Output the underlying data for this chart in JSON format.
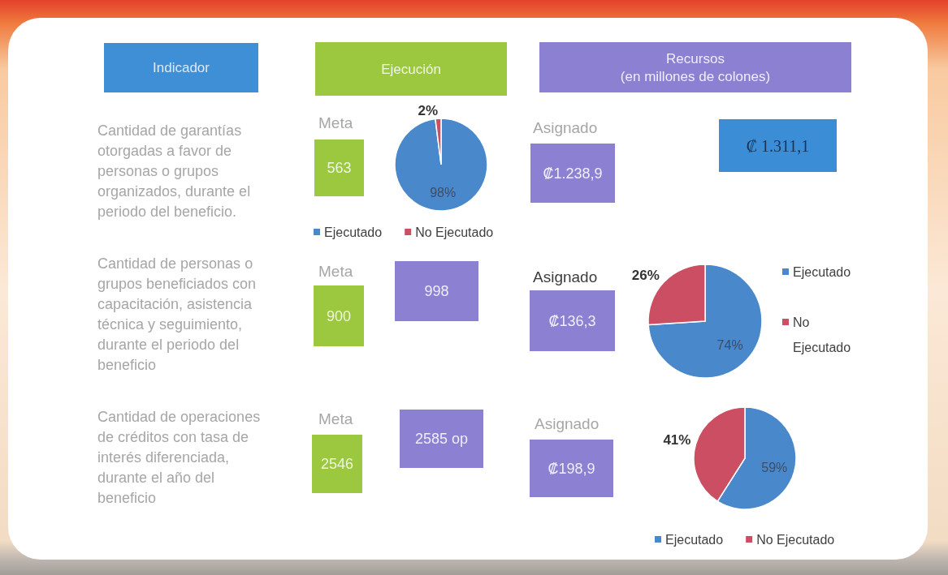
{
  "chart_data": [
    {
      "type": "other",
      "annotations": [
        "Indicador",
        "Ejecución",
        "Recursos",
        "(en millones de colones)",
        "Cantidad de garantías otorgadas a favor de personas o grupos organizados, durante el periodo del beneficio.",
        "Meta",
        "563",
        "Asignado",
        "₡1.238,9",
        "₡ 1.311,1",
        "Cantidad de personas o grupos beneficiados con capacitación, asistencia técnica y seguimiento, durante el periodo del beneficio",
        "Meta",
        "900",
        "998",
        "Asignado",
        "₡136,3",
        "Cantidad de operaciones de créditos con tasa de interés diferenciada, durante el año del beneficio",
        "Meta",
        "2546",
        "2585 op",
        "Asignado",
        "₡198,9"
      ]
    },
    {
      "type": "pie",
      "categories": [
        "Ejecutado",
        "No Ejecutado"
      ],
      "values": [
        98,
        2
      ],
      "colors": [
        "#4a88cc",
        "#cc4e63"
      ],
      "value_labels": [
        "98%",
        "2%"
      ],
      "legend": "bottom"
    },
    {
      "type": "pie",
      "categories": [
        "Ejecutado",
        "No Ejecutado"
      ],
      "values": [
        74,
        26
      ],
      "colors": [
        "#4a88cc",
        "#cc4e63"
      ],
      "value_labels": [
        "74%",
        "26%"
      ],
      "legend": "right"
    },
    {
      "type": "pie",
      "categories": [
        "Ejecutado",
        "No Ejecutado"
      ],
      "values": [
        59,
        41
      ],
      "colors": [
        "#4a88cc",
        "#cc4e63"
      ],
      "value_labels": [
        "59%",
        "41%"
      ],
      "legend": "bottom"
    }
  ]
}
